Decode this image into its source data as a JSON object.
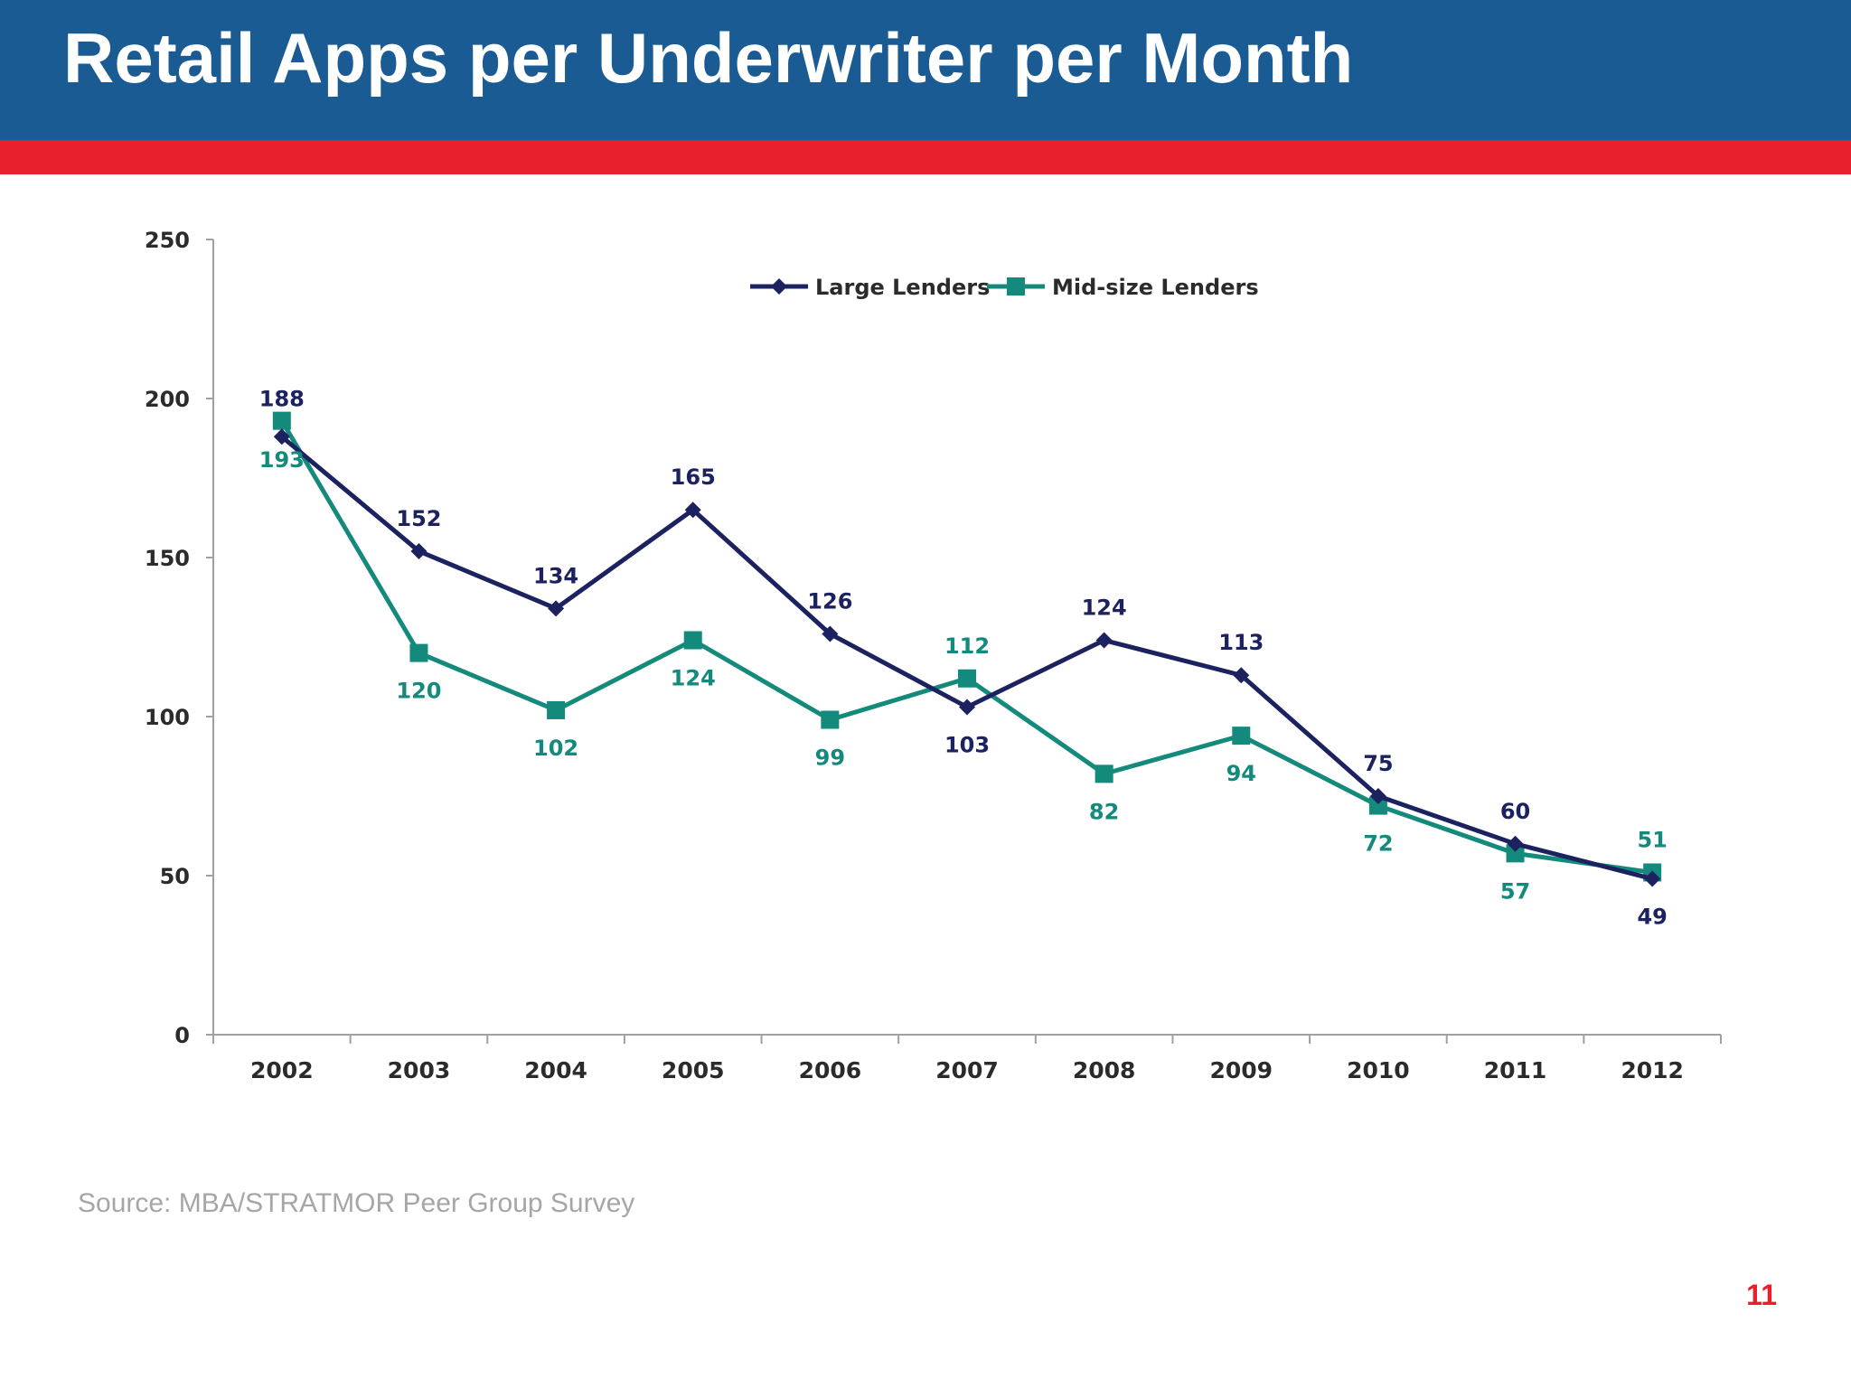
{
  "slide": {
    "title": "Retail Apps per Underwriter per Month",
    "source": "Source: MBA/STRATMOR Peer Group Survey",
    "page_number": "11",
    "colors": {
      "header": "#1b5b93",
      "stripe": "#e8202b",
      "page_number": "#e8202b"
    }
  },
  "chart_data": {
    "type": "line",
    "title": "",
    "xlabel": "",
    "ylabel": "",
    "ylim": [
      0,
      250
    ],
    "yticks": [
      0,
      50,
      100,
      150,
      200,
      250
    ],
    "grid": false,
    "legend_position": "top-center",
    "categories": [
      "2002",
      "2003",
      "2004",
      "2005",
      "2006",
      "2007",
      "2008",
      "2009",
      "2010",
      "2011",
      "2012"
    ],
    "series": [
      {
        "name": "Large Lenders",
        "color": "#1c2260",
        "marker": "diamond",
        "values": [
          188,
          152,
          134,
          165,
          126,
          103,
          124,
          113,
          75,
          60,
          49
        ],
        "labels": [
          "188",
          "152",
          "134",
          "165",
          "126",
          "103",
          "124",
          "113",
          "75",
          "60",
          "49"
        ]
      },
      {
        "name": "Mid-size Lenders",
        "color": "#138a7c",
        "marker": "square",
        "values": [
          193,
          120,
          102,
          124,
          99,
          112,
          82,
          94,
          72,
          57,
          51
        ],
        "labels": [
          "193",
          "120",
          "102",
          "124",
          "99",
          "112",
          "82",
          "94",
          "72",
          "57",
          "51"
        ]
      }
    ]
  }
}
